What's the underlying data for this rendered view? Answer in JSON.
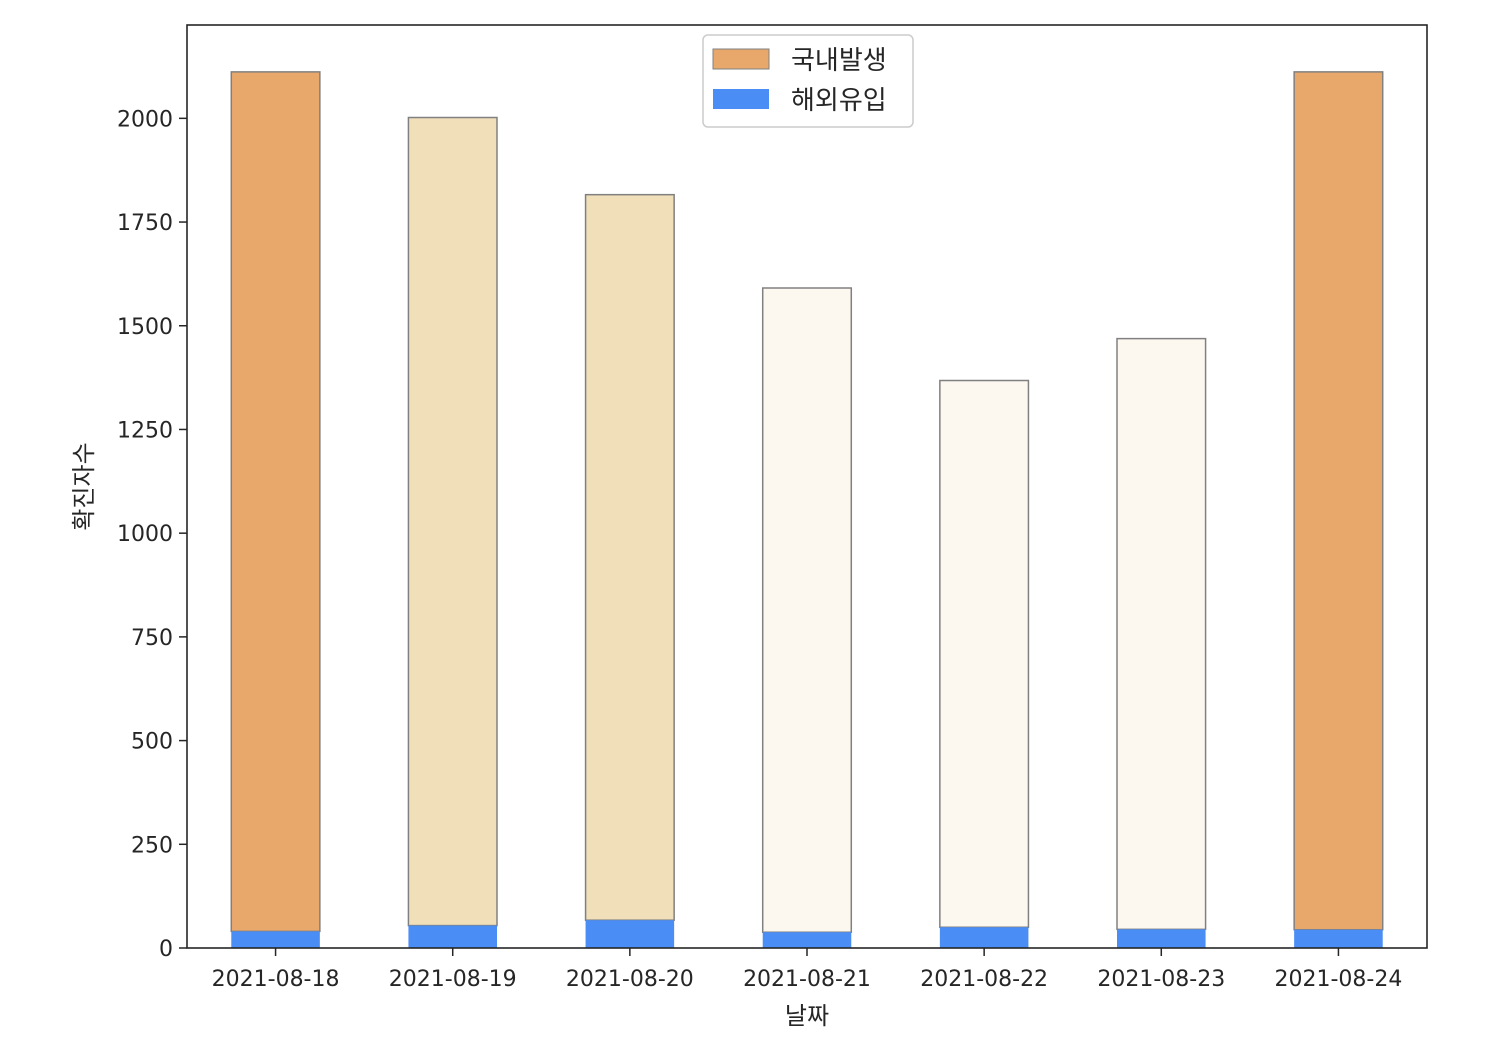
{
  "chart_data": {
    "type": "bar",
    "stacked": true,
    "categories": [
      "2021-08-18",
      "2021-08-19",
      "2021-08-20",
      "2021-08-21",
      "2021-08-22",
      "2021-08-23",
      "2021-08-24"
    ],
    "series": [
      {
        "name": "해외유입",
        "values": [
          40,
          54,
          67,
          38,
          50,
          45,
          44
        ],
        "color": "#4a8ef5"
      },
      {
        "name": "국내발생",
        "values": [
          2072,
          1948,
          1749,
          1553,
          1318,
          1424,
          2068
        ],
        "colors": [
          "#e8a86c",
          "#f0dfb8",
          "#f0dfb8",
          "#fdf8ef",
          "#fdf8ef",
          "#fdf8ef",
          "#e8a86c"
        ]
      }
    ],
    "legend_color": "#e8a86c",
    "xlabel": "날짜",
    "ylabel": "확진자수",
    "ylim": [
      0,
      2225
    ],
    "yticks": [
      0,
      250,
      500,
      750,
      1000,
      1250,
      1500,
      1750,
      2000
    ],
    "legend_position": "top-center",
    "grid": false,
    "edge_color": "#808080"
  }
}
